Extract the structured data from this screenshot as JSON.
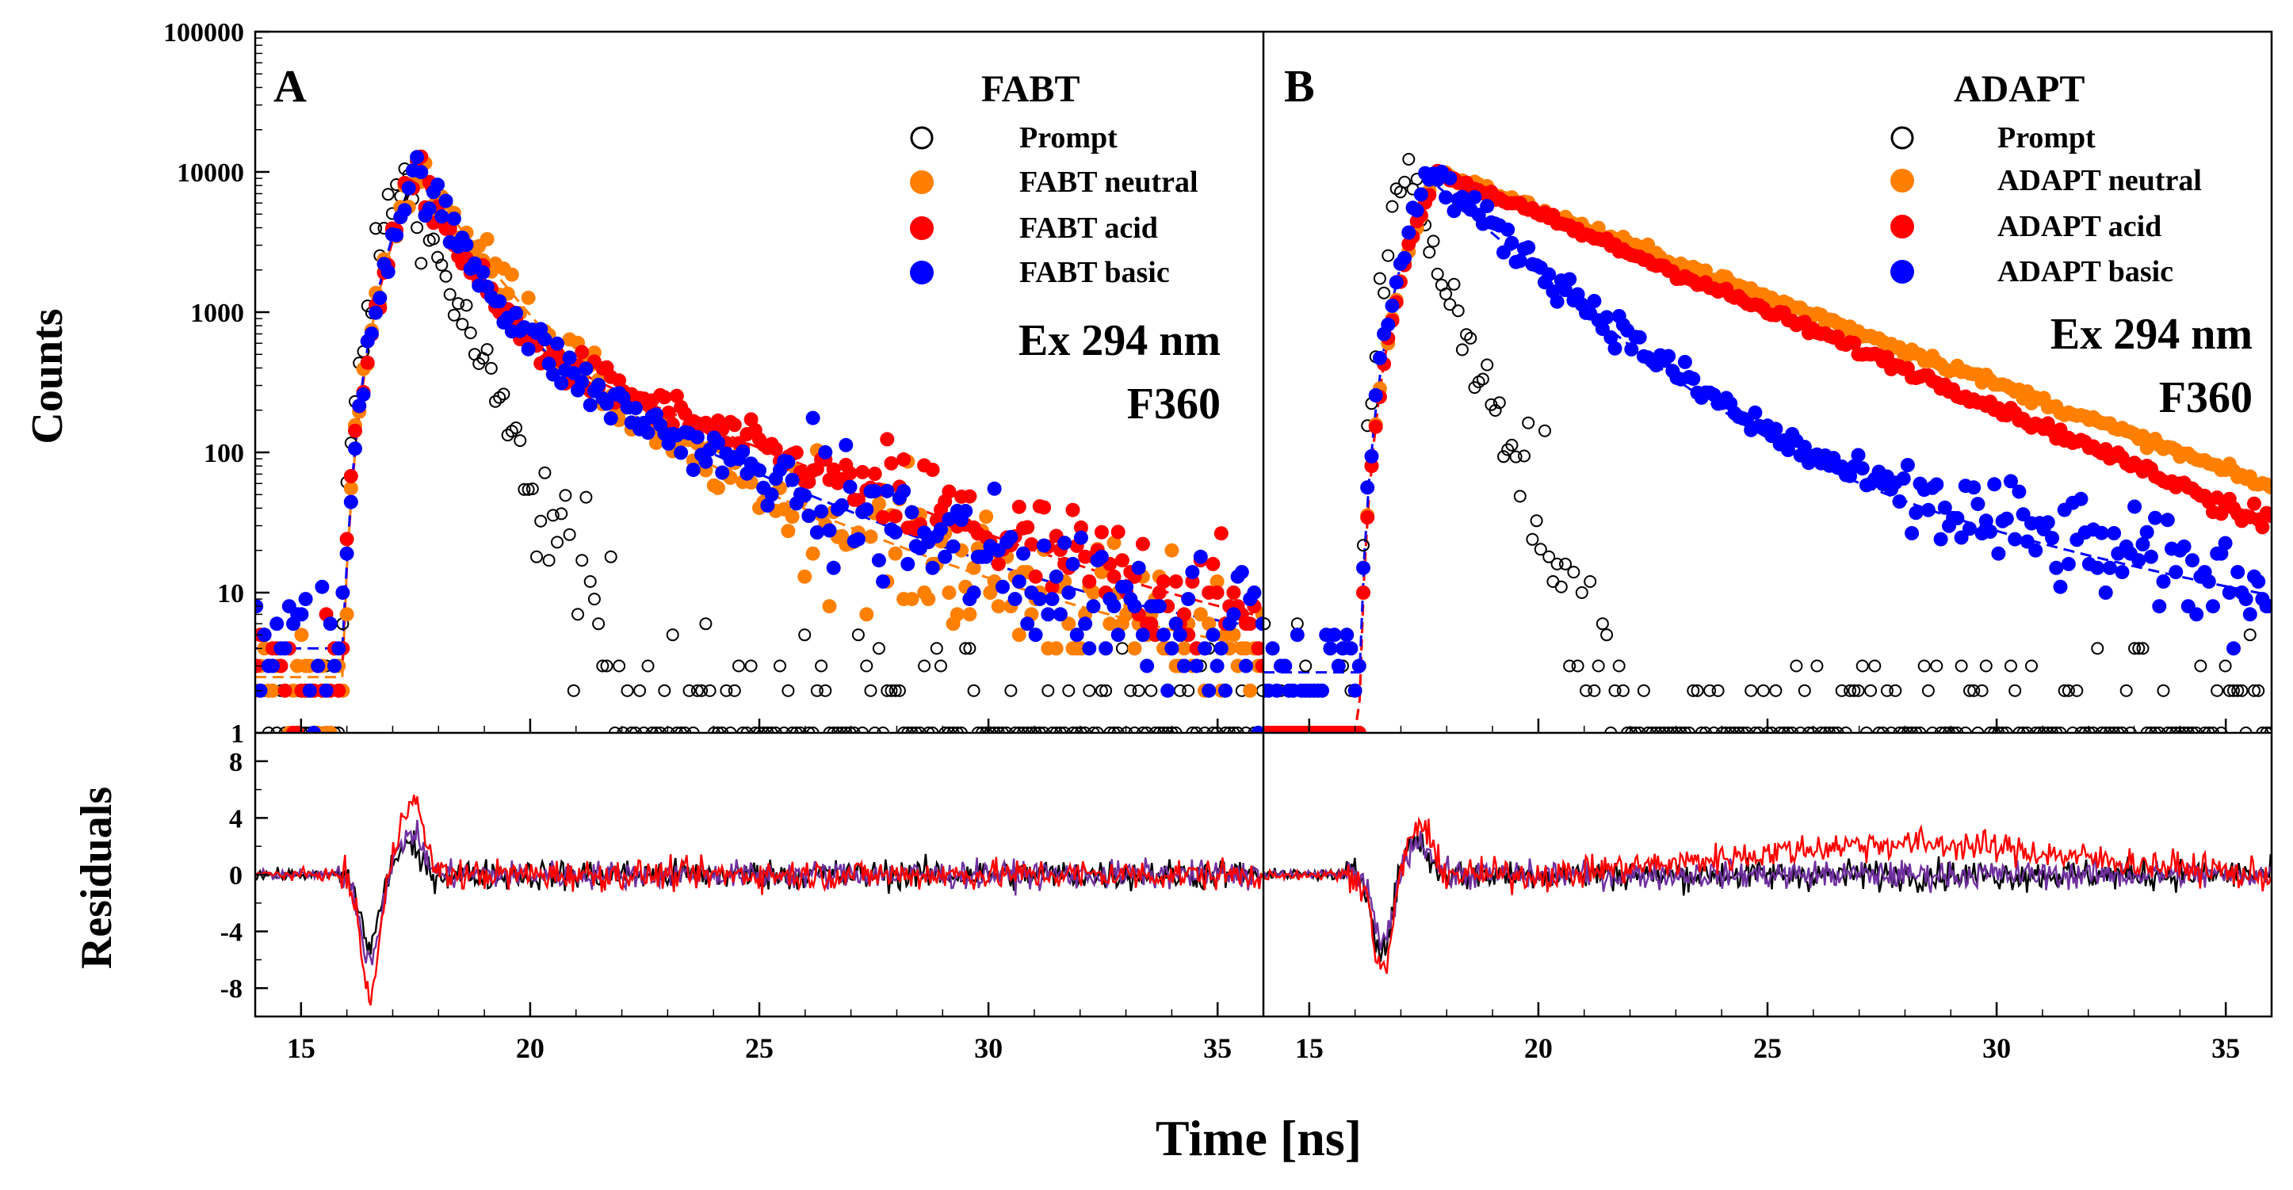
{
  "figure": {
    "xlabel": "Time [ns]",
    "ylabel_top": "Counts",
    "ylabel_bottom": "Residuals"
  },
  "colors": {
    "prompt": "#000000",
    "neutral": "#ff7f00",
    "acid": "#ff0000",
    "basic": "#0000ff",
    "fit_dash_neutral": "#ff7f00",
    "fit_dash_acid": "#ff0000",
    "fit_dash_basic": "#0000ff",
    "resid_prompt": "#000000",
    "resid_purple": "#7030a0",
    "resid_red": "#ff0000"
  },
  "chart_data": [
    {
      "type": "scatter",
      "panel": "A",
      "title": "FABT",
      "annotation_lines": [
        "Ex 294 nm",
        "F360"
      ],
      "xlabel": "Time [ns]",
      "ylabel": "Counts",
      "yscale": "log",
      "xlim": [
        14,
        36
      ],
      "ylim": [
        1,
        100000
      ],
      "x_ticks": [
        "15",
        "20",
        "25",
        "30",
        "35"
      ],
      "y_ticks": [
        "1",
        "10",
        "100",
        "1000",
        "10000",
        "100000"
      ],
      "legend": [
        {
          "label": "Prompt",
          "marker": "open-circle",
          "key": "prompt"
        },
        {
          "label": "FABT neutral",
          "marker": "filled-circle",
          "key": "neutral"
        },
        {
          "label": "FABT acid",
          "marker": "filled-circle",
          "key": "acid"
        },
        {
          "label": "FABT basic",
          "marker": "filled-circle",
          "key": "basic"
        }
      ],
      "legend_position": "top-right",
      "model": {
        "rise_start": 15.8,
        "rise_width": 0.7,
        "peak_counts": 10000,
        "series": [
          {
            "key": "prompt",
            "name": "Prompt",
            "peak": 17.2,
            "components": [
              [
                1,
                0.55
              ]
            ],
            "floor": 1,
            "noise": 0.5
          },
          {
            "key": "neutral",
            "name": "FABT neutral",
            "peak": 17.55,
            "components": [
              [
                0.95,
                0.95
              ],
              [
                0.05,
                3.2
              ]
            ],
            "floor": 2.5,
            "noise": 0.35
          },
          {
            "key": "acid",
            "name": "FABT acid",
            "peak": 17.55,
            "components": [
              [
                0.9,
                0.6
              ],
              [
                0.1,
                3.3
              ]
            ],
            "floor": 3,
            "noise": 0.3
          },
          {
            "key": "basic",
            "name": "FABT basic",
            "peak": 17.5,
            "components": [
              [
                0.92,
                0.75
              ],
              [
                0.08,
                3.0
              ]
            ],
            "floor": 4,
            "noise": 0.35
          }
        ]
      }
    },
    {
      "type": "scatter",
      "panel": "B",
      "title": "ADAPT",
      "annotation_lines": [
        "Ex 294 nm",
        "F360"
      ],
      "xlabel": "Time [ns]",
      "ylabel": "Counts",
      "yscale": "log",
      "xlim": [
        14,
        36
      ],
      "ylim": [
        1,
        100000
      ],
      "x_ticks": [
        "15",
        "20",
        "25",
        "30",
        "35"
      ],
      "legend": [
        {
          "label": "Prompt",
          "marker": "open-circle",
          "key": "prompt"
        },
        {
          "label": "ADAPT neutral",
          "marker": "filled-circle",
          "key": "neutral"
        },
        {
          "label": "ADAPT acid",
          "marker": "filled-circle",
          "key": "acid"
        },
        {
          "label": "ADAPT basic",
          "marker": "filled-circle",
          "key": "basic"
        }
      ],
      "legend_position": "top-right",
      "model": {
        "rise_start": 16.0,
        "rise_width": 0.7,
        "peak_counts": 10000,
        "series": [
          {
            "key": "prompt",
            "name": "Prompt",
            "peak": 17.1,
            "components": [
              [
                1,
                0.5
              ]
            ],
            "floor": 1,
            "noise": 0.5
          },
          {
            "key": "neutral",
            "name": "ADAPT neutral",
            "peak": 17.8,
            "components": [
              [
                1,
                3.5
              ]
            ],
            "floor": 1,
            "noise": 0.08
          },
          {
            "key": "acid",
            "name": "ADAPT acid",
            "peak": 17.8,
            "components": [
              [
                1,
                3.15
              ]
            ],
            "floor": 1,
            "noise": 0.08
          },
          {
            "key": "basic",
            "name": "ADAPT basic",
            "peak": 17.6,
            "components": [
              [
                0.97,
                1.5
              ],
              [
                0.03,
                5.0
              ]
            ],
            "floor": 3,
            "noise": 0.25
          }
        ]
      }
    },
    {
      "type": "line",
      "panel": "A-residuals",
      "ylabel": "Residuals",
      "xlim": [
        14,
        36
      ],
      "ylim": [
        -10,
        10
      ],
      "y_ticks": [
        "8",
        "4",
        "0",
        "-4",
        "-8"
      ],
      "series": [
        {
          "key": "resid_prompt",
          "dip_at": 16.5,
          "dip": -5,
          "bump_at": 17.3,
          "bump": 2,
          "noise": 1.1
        },
        {
          "key": "resid_purple",
          "dip_at": 16.5,
          "dip": -6,
          "bump_at": 17.4,
          "bump": 3,
          "noise": 1.0
        },
        {
          "key": "resid_red",
          "dip_at": 16.5,
          "dip": -8.5,
          "bump_at": 17.4,
          "bump": 5.5,
          "noise": 1.1
        }
      ]
    },
    {
      "type": "line",
      "panel": "B-residuals",
      "xlim": [
        14,
        36
      ],
      "ylim": [
        -10,
        10
      ],
      "series": [
        {
          "key": "resid_prompt",
          "dip_at": 16.6,
          "dip": -5.5,
          "bump_at": 17.3,
          "bump": 2.5,
          "noise": 1.1
        },
        {
          "key": "resid_purple",
          "dip_at": 16.6,
          "dip": -5,
          "bump_at": 17.4,
          "bump": 2.5,
          "noise": 1.0
        },
        {
          "key": "resid_red",
          "dip_at": 16.6,
          "dip": -7,
          "bump_at": 17.4,
          "bump": 3.5,
          "noise": 1.1,
          "hump_from": 24,
          "hump_to": 32,
          "hump": 2.2
        }
      ]
    }
  ]
}
